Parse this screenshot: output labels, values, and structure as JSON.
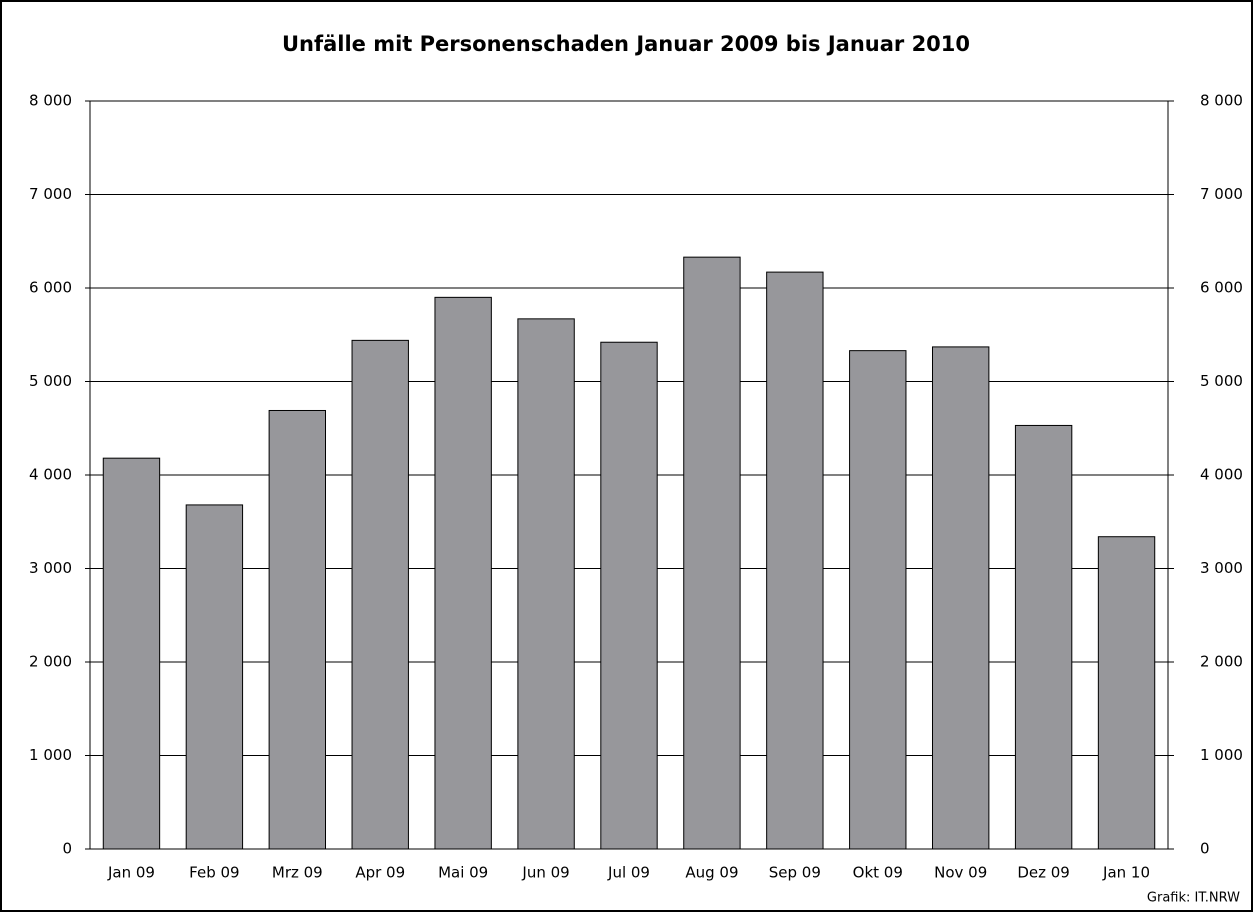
{
  "chart_data": {
    "type": "bar",
    "title": "Unfälle mit Personenschaden Januar 2009 bis Januar 2010",
    "categories": [
      "Jan 09",
      "Feb 09",
      "Mrz 09",
      "Apr 09",
      "Mai 09",
      "Jun 09",
      "Jul 09",
      "Aug 09",
      "Sep 09",
      "Okt 09",
      "Nov 09",
      "Dez 09",
      "Jan 10"
    ],
    "values": [
      4180,
      3680,
      4690,
      5440,
      5900,
      5670,
      5420,
      6330,
      6170,
      5330,
      5370,
      4530,
      3340
    ],
    "color": "#97979b",
    "ylim": [
      0,
      8000
    ],
    "yticks": [
      0,
      {
        "value": 1000,
        "label": "1 000"
      },
      {
        "value": 2000,
        "label": "2 000"
      },
      {
        "value": 3000,
        "label": "3 000"
      },
      {
        "value": 4000,
        "label": "4 000"
      },
      {
        "value": 5000,
        "label": "5 000"
      },
      {
        "value": 6000,
        "label": "6 000"
      },
      {
        "value": 7000,
        "label": "7 000"
      },
      {
        "value": 8000,
        "label": "8 000"
      }
    ],
    "y2lim": [
      0,
      8000
    ],
    "y2ticks": [
      0,
      {
        "value": 1000,
        "label": "1 000"
      },
      {
        "value": 2000,
        "label": "2 000"
      },
      {
        "value": 3000,
        "label": "3 000"
      },
      {
        "value": 4000,
        "label": "4 000"
      },
      {
        "value": 5000,
        "label": "5 000"
      },
      {
        "value": 6000,
        "label": "6 000"
      },
      {
        "value": 7000,
        "label": "7 000"
      },
      {
        "value": 8000,
        "label": "8 000"
      }
    ],
    "grid": true,
    "source": "Grafik: IT.NRW"
  }
}
